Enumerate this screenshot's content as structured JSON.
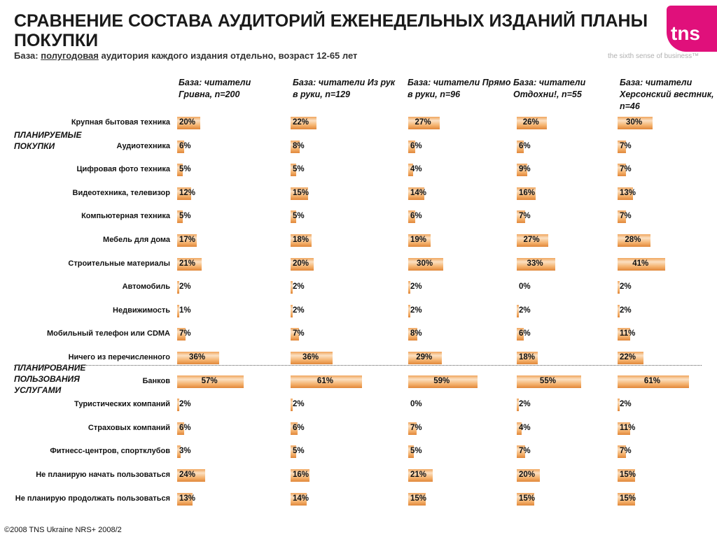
{
  "header": {
    "title": "СРАВНЕНИЕ СОСТАВА АУДИТОРИЙ ЕЖЕНЕДЕЛЬНЫХ ИЗДАНИЙ ПЛАНЫ ПОКУПКИ",
    "subtitle_prefix": "База:",
    "subtitle_underlined": "полугодовая",
    "subtitle_suffix": "аудитория каждого издания отдельно, возраст 12-65 лет"
  },
  "logo": {
    "text": "tns",
    "tagline": "the sixth sense of business™",
    "color": "#e0107b"
  },
  "footer": "©2008 TNS Ukraine  NRS+ 2008/2",
  "sections": {
    "purchases": "ПЛАНИРУЕМЫЕ ПОКУПКИ",
    "services": "ПЛАНИРОВАНИЕ ПОЛЬЗОВАНИЯ УСЛУГАМИ"
  },
  "chart_data": {
    "type": "bar",
    "orientation": "horizontal",
    "unit": "%",
    "colors": {
      "bar": "#f0a55c"
    },
    "categories": [
      "Крупная бытовая техника",
      "Аудиотехника",
      "Цифровая фото техника",
      "Видеотехника, телевизор",
      "Компьютерная техника",
      "Мебель для дома",
      "Строительные материалы",
      "Автомобиль",
      "Недвижимость",
      "Мобильный телефон или CDMA",
      "Ничего из перечисленного",
      "Банков",
      "Туристических компаний",
      "Страховых компаний",
      "Фитнесс-центров, спортклубов",
      "Не планирую начать пользоваться",
      "Не планирую продолжать пользоваться"
    ],
    "series": [
      {
        "name": "База: читатели Гривна, n=200",
        "values": [
          20,
          6,
          5,
          12,
          5,
          17,
          21,
          2,
          1,
          7,
          36,
          57,
          2,
          6,
          3,
          24,
          13
        ]
      },
      {
        "name": "База: читатели Из рук в руки, n=129",
        "values": [
          22,
          8,
          5,
          15,
          5,
          18,
          20,
          2,
          2,
          7,
          36,
          61,
          2,
          6,
          5,
          16,
          14
        ]
      },
      {
        "name": "База: читатели Прямо в руки, n=96",
        "values": [
          27,
          6,
          4,
          14,
          6,
          19,
          30,
          2,
          2,
          8,
          29,
          59,
          0,
          7,
          5,
          21,
          15
        ]
      },
      {
        "name": "База: читатели Отдохни!, n=55",
        "values": [
          26,
          6,
          9,
          16,
          7,
          27,
          33,
          0,
          2,
          6,
          18,
          55,
          2,
          4,
          7,
          20,
          15
        ]
      },
      {
        "name": "База: читатели Херсонский вестник,  n=46",
        "values": [
          30,
          7,
          7,
          13,
          7,
          28,
          41,
          2,
          2,
          11,
          22,
          61,
          2,
          11,
          7,
          15,
          15
        ]
      }
    ]
  }
}
